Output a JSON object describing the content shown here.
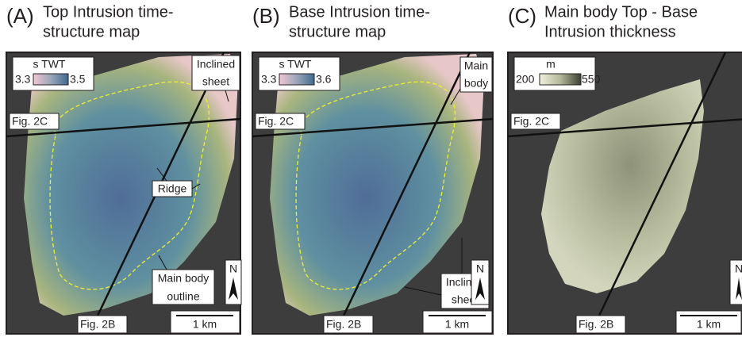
{
  "panels": [
    {
      "label": "(A)",
      "title": [
        "Top Intrusion time-",
        "structure map"
      ],
      "legend": {
        "title": "s TWT",
        "min": "3.3",
        "max": "3.5"
      },
      "annotations": {
        "top_right": [
          "Inclined",
          "sheet"
        ],
        "ridge": "Ridge",
        "outline": [
          "Main body",
          "outline"
        ]
      },
      "line_labels": {
        "horizontal": "Fig. 2C",
        "diagonal": "Fig. 2B"
      },
      "north": "N",
      "scale": "1 km"
    },
    {
      "label": "(B)",
      "title": [
        "Base Intrusion time-",
        "structure map"
      ],
      "legend": {
        "title": "s TWT",
        "min": "3.3",
        "max": "3.6"
      },
      "annotations": {
        "top_right": [
          "Main",
          "body"
        ],
        "bottom": [
          "Inclined",
          "sheet"
        ]
      },
      "line_labels": {
        "horizontal": "Fig. 2C",
        "diagonal": "Fig. 2B"
      },
      "north": "N",
      "scale": "1 km"
    },
    {
      "label": "(C)",
      "title": [
        "Main body Top - Base",
        "Intrusion thickness"
      ],
      "legend": {
        "title": "m",
        "min": "200",
        "max": "550"
      },
      "line_labels": {
        "horizontal": "Fig. 2C",
        "diagonal": "Fig. 2B"
      },
      "north": "N",
      "scale": "1 km"
    }
  ]
}
